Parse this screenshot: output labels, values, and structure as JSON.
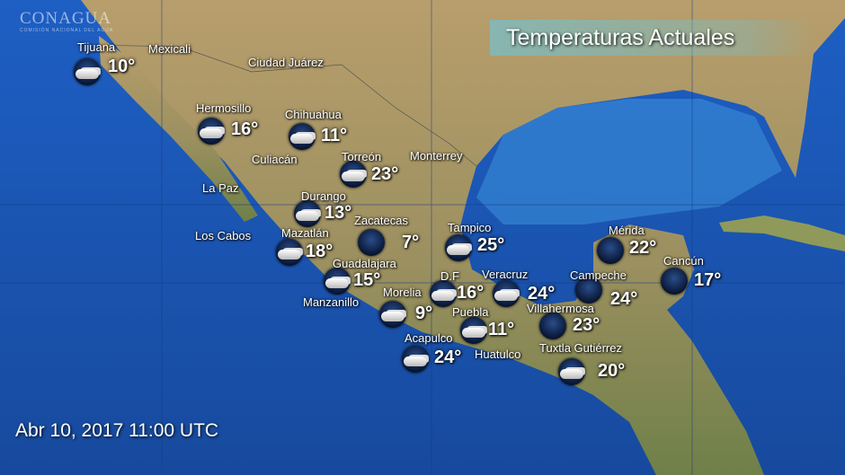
{
  "title": "Temperaturas Actuales",
  "date": "Abr 10, 2017  11:00 UTC",
  "logo": {
    "name": "CONAGUA",
    "subtitle": "COMISIÓN NACIONAL DEL AGUA"
  },
  "colors": {
    "ocean": "#1c5fc0",
    "land": "#b49a68",
    "text": "#ffffff"
  },
  "places": [
    {
      "name": "Mexicali"
    },
    {
      "name": "Ciudad Juárez"
    },
    {
      "name": "Culiacán"
    },
    {
      "name": "Monterrey"
    },
    {
      "name": "La Paz"
    },
    {
      "name": "Los Cabos"
    },
    {
      "name": "Manzanillo"
    },
    {
      "name": "Huatulco"
    }
  ],
  "stations": [
    {
      "name": "Tijuana",
      "temp": "10°",
      "icon": "cloudy-night-icon"
    },
    {
      "name": "Hermosillo",
      "temp": "16°",
      "icon": "cloudy-night-icon"
    },
    {
      "name": "Chihuahua",
      "temp": "11°",
      "icon": "cloudy-night-icon"
    },
    {
      "name": "Torreón",
      "temp": "23°",
      "icon": "cloudy-night-icon"
    },
    {
      "name": "Durango",
      "temp": "13°",
      "icon": "cloudy-night-icon"
    },
    {
      "name": "Zacatecas",
      "temp": "7°",
      "icon": "clear-night-icon"
    },
    {
      "name": "Tampico",
      "temp": "25°",
      "icon": "cloudy-night-icon"
    },
    {
      "name": "Mazatlán",
      "temp": "18°",
      "icon": "cloudy-night-icon"
    },
    {
      "name": "Guadalajara",
      "temp": "15°",
      "icon": "cloudy-night-icon"
    },
    {
      "name": "D.F",
      "temp": "16°",
      "icon": "cloudy-night-icon"
    },
    {
      "name": "Veracruz",
      "temp": "24°",
      "icon": "cloudy-night-icon"
    },
    {
      "name": "Campeche",
      "temp": "24°",
      "icon": "clear-night-icon"
    },
    {
      "name": "Mérida",
      "temp": "22°",
      "icon": "clear-night-icon"
    },
    {
      "name": "Cancún",
      "temp": "17°",
      "icon": "clear-night-icon"
    },
    {
      "name": "Morelia",
      "temp": "9°",
      "icon": "cloudy-night-icon"
    },
    {
      "name": "Puebla",
      "temp": "11°",
      "icon": "cloudy-night-icon"
    },
    {
      "name": "Villahermosa",
      "temp": "23°",
      "icon": "clear-night-icon"
    },
    {
      "name": "Acapulco",
      "temp": "24°",
      "icon": "cloudy-night-icon"
    },
    {
      "name": "Tuxtla Gutiérrez",
      "temp": "20°",
      "icon": "cloudy-night-icon"
    }
  ]
}
